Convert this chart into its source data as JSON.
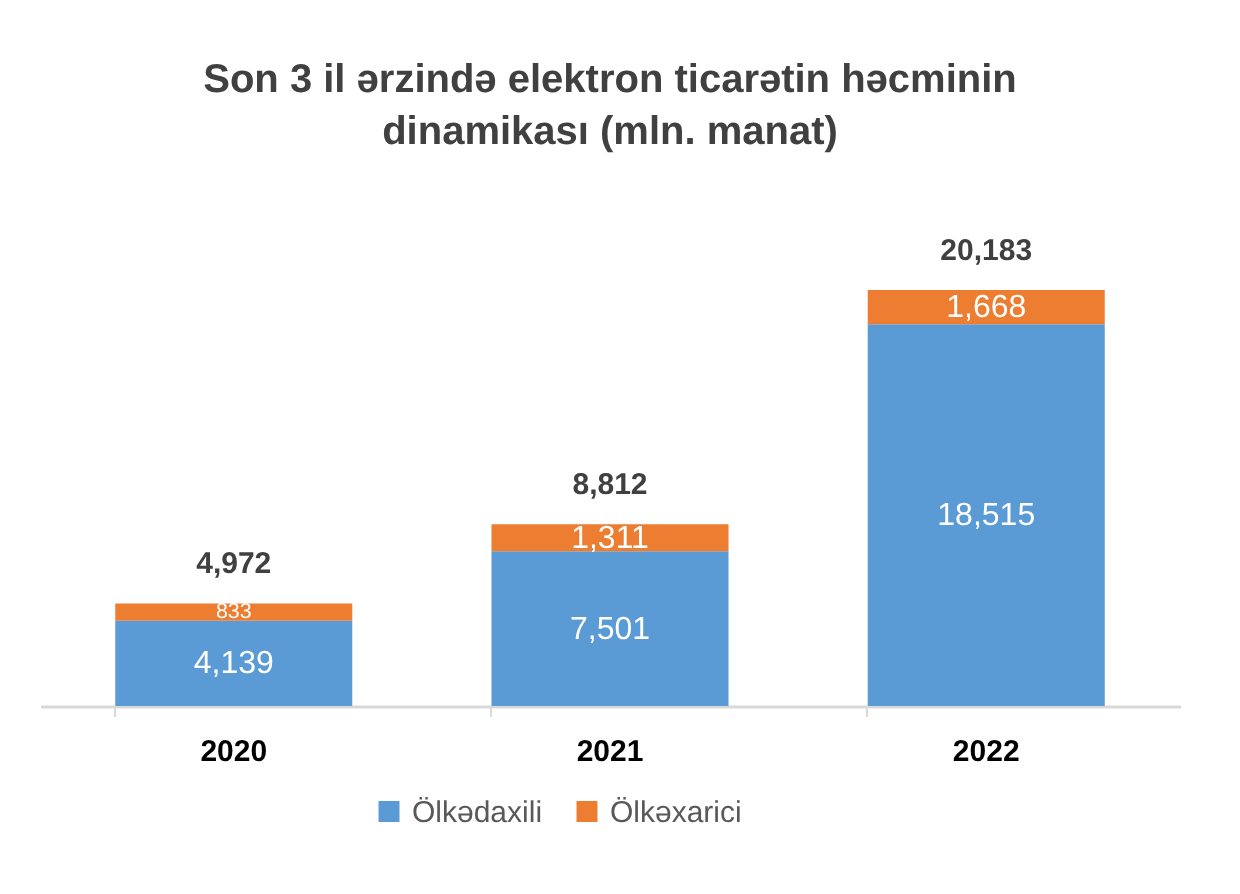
{
  "chart_data": {
    "type": "bar",
    "title": "Son 3 il ərzində elektron ticarətin həcminin dinamikası (mln. manat)",
    "categories": [
      "2020",
      "2021",
      "2022"
    ],
    "stacked": true,
    "series": [
      {
        "name": "Ölkədaxili",
        "color": "#5b9bd5",
        "values": [
          4139,
          7501,
          18515
        ],
        "value_labels": [
          "4,139",
          "7,501",
          "18,515"
        ]
      },
      {
        "name": "Ölkəxarici",
        "color": "#ed7d31",
        "values": [
          833,
          1311,
          1668
        ],
        "value_labels": [
          "833",
          "1,311",
          "1,668"
        ]
      }
    ],
    "totals": [
      "4,972",
      "8,812",
      "20,183"
    ],
    "legend": "bottom"
  }
}
